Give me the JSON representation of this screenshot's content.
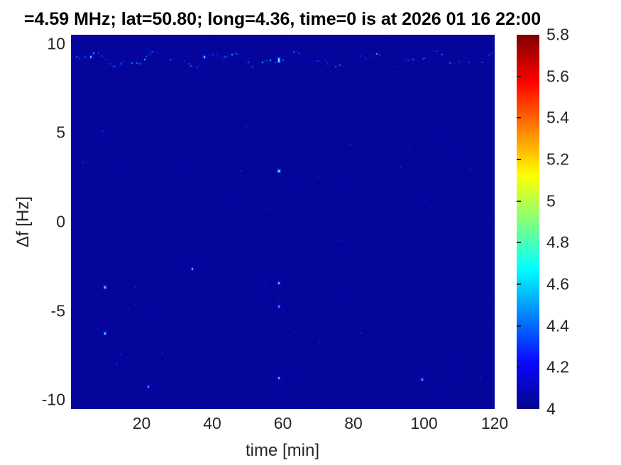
{
  "colors": {
    "plot_background": "#05059b",
    "tick_text": "#262626",
    "title_text": "#000000"
  },
  "chart_data": {
    "type": "heatmap",
    "title": "=4.59 MHz;  lat=50.80; long=4.36, time=0 is at 2026 01 16 22:00",
    "xlabel": "time [min]",
    "ylabel": "Δf [Hz]",
    "xlim": [
      0,
      120
    ],
    "ylim": [
      -10.5,
      10.5
    ],
    "clim": [
      4,
      5.8
    ],
    "x_ticks": [
      20,
      40,
      60,
      80,
      100,
      120
    ],
    "y_ticks": [
      10,
      5,
      0,
      -5,
      -10
    ],
    "colorbar_tick_labels": [
      "5.8",
      "5.6",
      "5.4",
      "5.2",
      "5",
      "4.8",
      "4.6",
      "4.4",
      "4.2",
      "4"
    ],
    "colorbar_tick_values": [
      5.8,
      5.6,
      5.4,
      5.2,
      5.0,
      4.8,
      4.6,
      4.4,
      4.2,
      4.0
    ],
    "colormap": "jet",
    "legend": "colorbar-right",
    "grid": false,
    "background_value": 4.03,
    "jet_anchors": [
      [
        0.0,
        [
          5,
          5,
          140
        ]
      ],
      [
        0.125,
        [
          8,
          8,
          255
        ]
      ],
      [
        0.375,
        [
          0,
          255,
          255
        ]
      ],
      [
        0.625,
        [
          255,
          255,
          0
        ]
      ],
      [
        0.875,
        [
          255,
          0,
          0
        ]
      ],
      [
        1.0,
        [
          128,
          0,
          0
        ]
      ]
    ],
    "speckle_line": {
      "f_hz": 9.15,
      "wobble_hz": 0.3,
      "t_range": [
        0,
        120
      ],
      "value_range": [
        4.1,
        4.7
      ],
      "description": "faint wavy dotted line of brighter speckles near top of spectrogram"
    },
    "speckle_rows": [
      {
        "f_hz": 0.8,
        "t_range": [
          40,
          120
        ],
        "density": 0.1,
        "value_range": [
          4.05,
          4.3
        ]
      },
      {
        "f_hz": -2.55,
        "t_range": [
          0,
          120
        ],
        "density": 0.07,
        "value_range": [
          4.05,
          4.3
        ]
      },
      {
        "f_hz": -8.9,
        "t_range": [
          85,
          120
        ],
        "density": 0.09,
        "value_range": [
          4.05,
          4.3
        ]
      }
    ],
    "notable_points": [
      {
        "t": 58.7,
        "f": 2.9,
        "v": 4.9
      },
      {
        "t": 58.7,
        "f": 9.2,
        "v": 4.7,
        "smear": "vertical"
      },
      {
        "t": 9.4,
        "f": -3.6,
        "v": 4.65
      },
      {
        "t": 9.5,
        "f": -6.2,
        "v": 4.6
      },
      {
        "t": 58.7,
        "f": -3.4,
        "v": 4.55
      },
      {
        "t": 58.7,
        "f": -4.7,
        "v": 4.4
      },
      {
        "t": 58.7,
        "f": -8.7,
        "v": 4.5
      },
      {
        "t": 34.2,
        "f": -2.6,
        "v": 4.45
      },
      {
        "t": 99.2,
        "f": -8.8,
        "v": 4.5
      },
      {
        "t": 21.7,
        "f": -9.2,
        "v": 4.35
      },
      {
        "t": 37.5,
        "f": 9.3,
        "v": 4.55
      },
      {
        "t": 5.5,
        "f": 9.3,
        "v": 4.5
      }
    ],
    "noise": {
      "seed": 7,
      "light_specks": 1500,
      "dark_specks": 550,
      "cluster": {
        "t_range": [
          96,
          120
        ],
        "f_range": [
          -9.5,
          -5.0
        ],
        "count": 170
      }
    }
  }
}
